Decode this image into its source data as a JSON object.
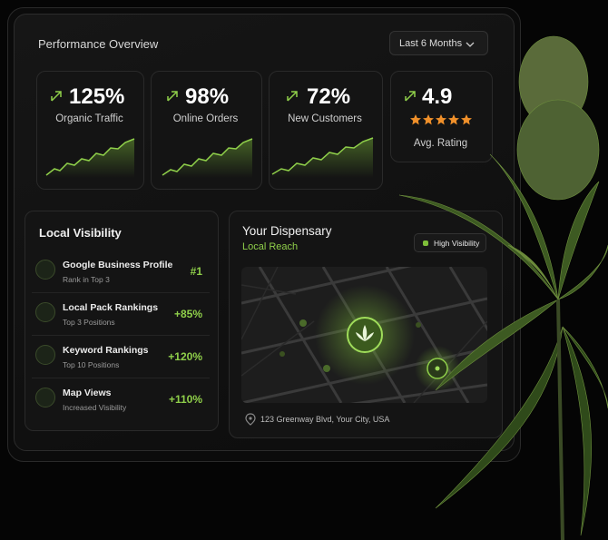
{
  "header": {
    "title": "Performance Overview",
    "period": "Last 6 Months"
  },
  "metrics": [
    {
      "value": "125%",
      "label": "Organic Traffic"
    },
    {
      "value": "98%",
      "label": "Online Orders"
    },
    {
      "value": "72%",
      "label": "New Customers"
    },
    {
      "value": "4.9",
      "label": "Avg. Rating"
    }
  ],
  "local_visibility": {
    "title": "Local Visibility",
    "items": [
      {
        "name": "Google Business Profile",
        "detail": "Rank in Top 3",
        "stat": "#1"
      },
      {
        "name": "Local Pack Rankings",
        "detail": "Top 3 Positions",
        "stat": "+85%"
      },
      {
        "name": "Keyword Rankings",
        "detail": "Top 10 Positions",
        "stat": "+120%"
      },
      {
        "name": "Map Views",
        "detail": "Increased Visibility",
        "stat": "+110%"
      }
    ]
  },
  "dispensary": {
    "title": "Your Dispensary",
    "subtitle": "Local Reach",
    "badge": "High Visibility",
    "address": "123 Greenway Blvd, Your City, USA"
  }
}
